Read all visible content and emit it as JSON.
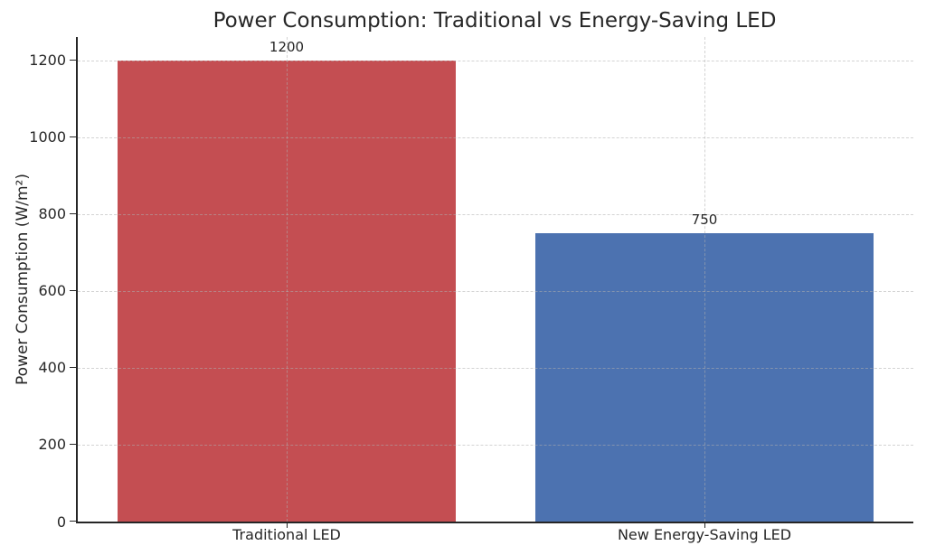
{
  "chart_data": {
    "type": "bar",
    "title": "Power Consumption: Traditional vs Energy-Saving LED",
    "xlabel": "",
    "ylabel": "Power Consumption (W/m²)",
    "categories": [
      "Traditional LED",
      "New Energy-Saving LED"
    ],
    "values": [
      1200,
      750
    ],
    "value_labels": [
      "1200",
      "750"
    ],
    "bar_colors": [
      "#c44e52",
      "#4c72b0"
    ],
    "yticks": [
      0,
      200,
      400,
      600,
      800,
      1000,
      1200
    ],
    "ylim": [
      0,
      1260
    ],
    "grid": "dashed, both axes, drawn over bars",
    "legend": "none",
    "background": "#ffffff",
    "text_color": "#262626"
  }
}
